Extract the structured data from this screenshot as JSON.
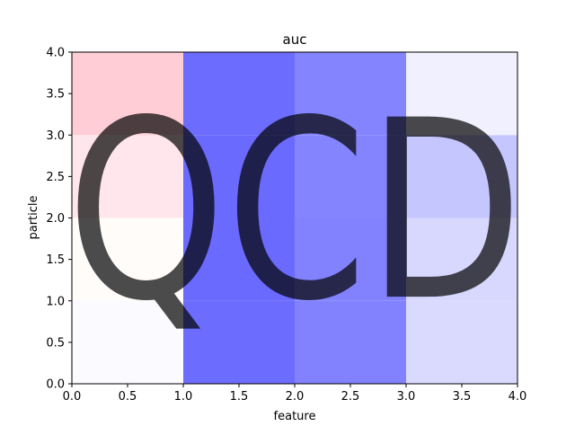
{
  "chart_data": {
    "type": "heatmap",
    "title": "auc",
    "xlabel": "feature",
    "ylabel": "particle",
    "xlim": [
      0,
      4
    ],
    "ylim": [
      0,
      4
    ],
    "xticks": [
      "0.0",
      "0.5",
      "1.0",
      "1.5",
      "2.0",
      "2.5",
      "3.0",
      "3.5",
      "4.0"
    ],
    "yticks": [
      "0.0",
      "0.5",
      "1.0",
      "1.5",
      "2.0",
      "2.5",
      "3.0",
      "3.5",
      "4.0"
    ],
    "grid": false,
    "colormap": "bwr",
    "cells": [
      {
        "x": [
          0,
          1
        ],
        "y": [
          0,
          1
        ],
        "color": "#fafaff"
      },
      {
        "x": [
          1,
          2
        ],
        "y": [
          0,
          1
        ],
        "color": "#6c6cff"
      },
      {
        "x": [
          2,
          3
        ],
        "y": [
          0,
          1
        ],
        "color": "#8282ff"
      },
      {
        "x": [
          3,
          4
        ],
        "y": [
          0,
          1
        ],
        "color": "#dadaff"
      },
      {
        "x": [
          0,
          1
        ],
        "y": [
          1,
          2
        ],
        "color": "#fffcfa"
      },
      {
        "x": [
          1,
          2
        ],
        "y": [
          1,
          2
        ],
        "color": "#6a6aff"
      },
      {
        "x": [
          2,
          3
        ],
        "y": [
          1,
          2
        ],
        "color": "#8282ff"
      },
      {
        "x": [
          3,
          4
        ],
        "y": [
          1,
          2
        ],
        "color": "#d8d8ff"
      },
      {
        "x": [
          0,
          1
        ],
        "y": [
          2,
          3
        ],
        "color": "#ffe6ec"
      },
      {
        "x": [
          1,
          2
        ],
        "y": [
          2,
          3
        ],
        "color": "#6a6aff"
      },
      {
        "x": [
          2,
          3
        ],
        "y": [
          2,
          3
        ],
        "color": "#8484ff"
      },
      {
        "x": [
          3,
          4
        ],
        "y": [
          2,
          3
        ],
        "color": "#c6c6ff"
      },
      {
        "x": [
          0,
          1
        ],
        "y": [
          3,
          4
        ],
        "color": "#ffcdd6"
      },
      {
        "x": [
          1,
          2
        ],
        "y": [
          3,
          4
        ],
        "color": "#6c6cff"
      },
      {
        "x": [
          2,
          3
        ],
        "y": [
          3,
          4
        ],
        "color": "#8484ff"
      },
      {
        "x": [
          3,
          4
        ],
        "y": [
          3,
          4
        ],
        "color": "#f0f0ff"
      }
    ],
    "watermark": {
      "text": "QCD",
      "color": "#66c28f",
      "opacity": 0.7
    }
  }
}
